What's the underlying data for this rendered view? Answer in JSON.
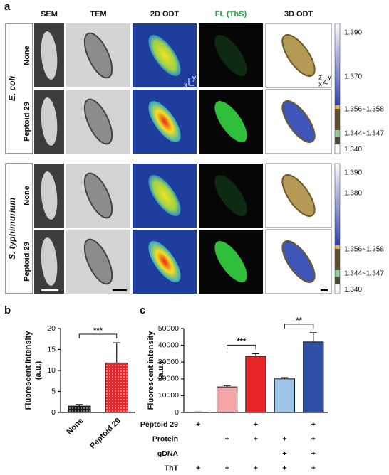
{
  "panel_labels": [
    "a",
    "b",
    "c"
  ],
  "panel_a": {
    "columns": [
      "SEM",
      "TEM",
      "2D ODT",
      "FL (ThS)",
      "3D ODT"
    ],
    "orientation_2d": [
      "y",
      "x"
    ],
    "orientation_3d": [
      "z",
      "y",
      "x"
    ],
    "groups": [
      {
        "label": "E. coli",
        "rows": [
          "None",
          "Peptoid 29"
        ],
        "colorbar_labels": [
          "1.390",
          "1.370",
          "1.356~1.358",
          "1.344~1.347",
          "1.340"
        ]
      },
      {
        "label": "S. typhimurium",
        "rows": [
          "None",
          "Peptoid 29"
        ],
        "colorbar_labels": [
          "1.390",
          "1.380",
          "1.356~1.358",
          "1.344~1.347",
          "1.340"
        ]
      }
    ]
  },
  "chart_data": [
    {
      "type": "bar",
      "ylabel": [
        "Fluorescent intensity",
        "(a.u.)"
      ],
      "categories": [
        "None",
        "Peptoid 29"
      ],
      "values": [
        1.5,
        11.8
      ],
      "errors": [
        0.4,
        4.8
      ],
      "colors": [
        "#1a1a1a",
        "#e8262a"
      ],
      "pattern": "dotted",
      "ylim": [
        0,
        20
      ],
      "yticks": [
        0,
        5,
        10,
        15,
        20
      ],
      "significance": [
        "***"
      ]
    },
    {
      "type": "bar",
      "ylabel": [
        "Fluorescent intensity",
        "(a.u.)"
      ],
      "values": [
        200,
        15200,
        33500,
        20000,
        42000
      ],
      "errors": [
        100,
        800,
        1500,
        700,
        5500
      ],
      "colors": [
        "#ffffff",
        "#f4a5a8",
        "#e8262a",
        "#9dc3e6",
        "#2e4fa3"
      ],
      "ylim": [
        0,
        50000
      ],
      "yticks": [
        0,
        10000,
        20000,
        30000,
        40000,
        50000
      ],
      "significance": [
        "***",
        "**"
      ],
      "conditions": [
        {
          "name": "Peptoid 29",
          "marks": [
            "+",
            null,
            "+",
            null,
            "+"
          ]
        },
        {
          "name": "Protein",
          "marks": [
            null,
            "+",
            "+",
            "+",
            "+"
          ]
        },
        {
          "name": "gDNA",
          "marks": [
            null,
            null,
            null,
            "+",
            "+"
          ]
        },
        {
          "name": "ThT",
          "marks": [
            "+",
            "+",
            "+",
            "+",
            "+"
          ]
        }
      ]
    }
  ]
}
